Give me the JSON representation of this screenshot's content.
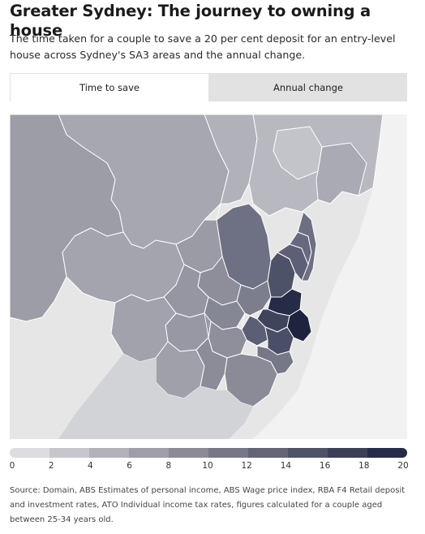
{
  "header": {
    "title": "Greater Sydney: The journey to owning a house",
    "subtitle": "The time taken for a couple to save a 20 per cent deposit for an entry-level house across Sydney's SA3 areas and the annual change."
  },
  "tabs": [
    {
      "label": "Time to save",
      "active": true
    },
    {
      "label": "Annual change",
      "active": false
    }
  ],
  "map": {
    "background_color": "#e6e6e6",
    "boundary_color": "#ffffff"
  },
  "legend": {
    "ticks": [
      "0",
      "2",
      "4",
      "6",
      "8",
      "10",
      "12",
      "14",
      "16",
      "18",
      "20"
    ],
    "colors": [
      "#dcdde1",
      "#c6c7cd",
      "#b1b2ba",
      "#9d9ea8",
      "#8a8b97",
      "#777886",
      "#636577",
      "#4f5268",
      "#3b3f58",
      "#262b47"
    ]
  },
  "footer": {
    "source": "Source: Domain, ABS Estimates of personal income, ABS Wage price index, RBA F4 Retail deposit and investment rates, ATO Individual income tax rates, figures calculated for a couple aged between 25-34 years old."
  }
}
